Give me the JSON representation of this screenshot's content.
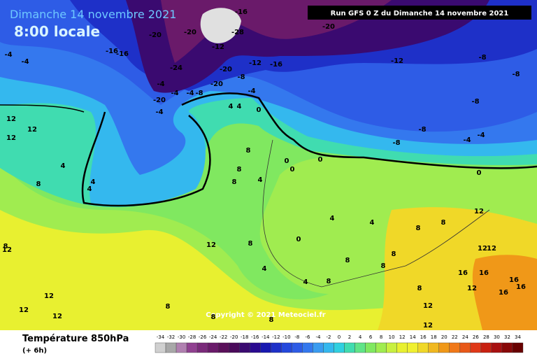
{
  "header": {
    "title": "Dimanche 14 novembre 2021",
    "subtitle": "8:00 locale",
    "run": "Run GFS 0 Z du Dimanche 14 novembre 2021"
  },
  "copyright": "Copyright © 2021 Meteociel.fr",
  "footer": {
    "title": "Température 850hPa",
    "lead": "(+ 6h)"
  },
  "legend": {
    "labels": [
      -34,
      -32,
      -30,
      -28,
      -26,
      -24,
      -22,
      -20,
      -18,
      -16,
      -14,
      -12,
      -10,
      -8,
      -6,
      -4,
      -2,
      0,
      2,
      4,
      6,
      8,
      10,
      12,
      14,
      16,
      18,
      20,
      22,
      24,
      26,
      28,
      30,
      32,
      34
    ],
    "colors": [
      "#d0d0d0",
      "#a8a8a8",
      "#b080b0",
      "#904090",
      "#7a2a7a",
      "#6a1a6a",
      "#5a105a",
      "#4a0a5a",
      "#3a0a70",
      "#2a0a90",
      "#1818b0",
      "#1e30c8",
      "#2448dc",
      "#2e5ce6",
      "#3478ee",
      "#3a9cf0",
      "#34b8ee",
      "#30d0e0",
      "#40dcb0",
      "#60e488",
      "#80e860",
      "#a0ec50",
      "#c8f040",
      "#e8f030",
      "#f0f030",
      "#f0d828",
      "#f0b820",
      "#f09818",
      "#f07818",
      "#e85818",
      "#e03818",
      "#c82010",
      "#a81010",
      "#880808",
      "#680000"
    ]
  },
  "map_labels": [
    -4,
    -4,
    -16,
    -16,
    -20,
    -20,
    -28,
    -12,
    -24,
    -20,
    -8,
    -12,
    -16,
    -24,
    -20,
    -16,
    -12,
    -8,
    -8,
    -4,
    -4,
    -4,
    -8,
    -20,
    -4,
    -20,
    -4,
    0,
    4,
    4,
    -8,
    -8,
    -8,
    -4,
    -4,
    0,
    12,
    12,
    12,
    8,
    4,
    4,
    4,
    8,
    8,
    8,
    4,
    0,
    0,
    0,
    4,
    4,
    8,
    8,
    12,
    12,
    12,
    8,
    0,
    4,
    4,
    8,
    8,
    8,
    8,
    8,
    12,
    12,
    16,
    12,
    16,
    16,
    16,
    16,
    12,
    12,
    12,
    12,
    12,
    8,
    8,
    8,
    8
  ]
}
